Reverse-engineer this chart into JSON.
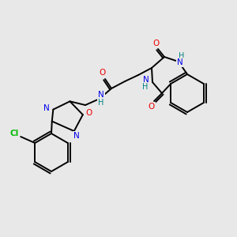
{
  "bg_color": "#e8e8e8",
  "atom_colors": {
    "C": "#000000",
    "N": "#0000ee",
    "O": "#ee0000",
    "H": "#008080",
    "Cl": "#00bb00"
  },
  "figsize": [
    3.0,
    3.0
  ],
  "dpi": 100
}
